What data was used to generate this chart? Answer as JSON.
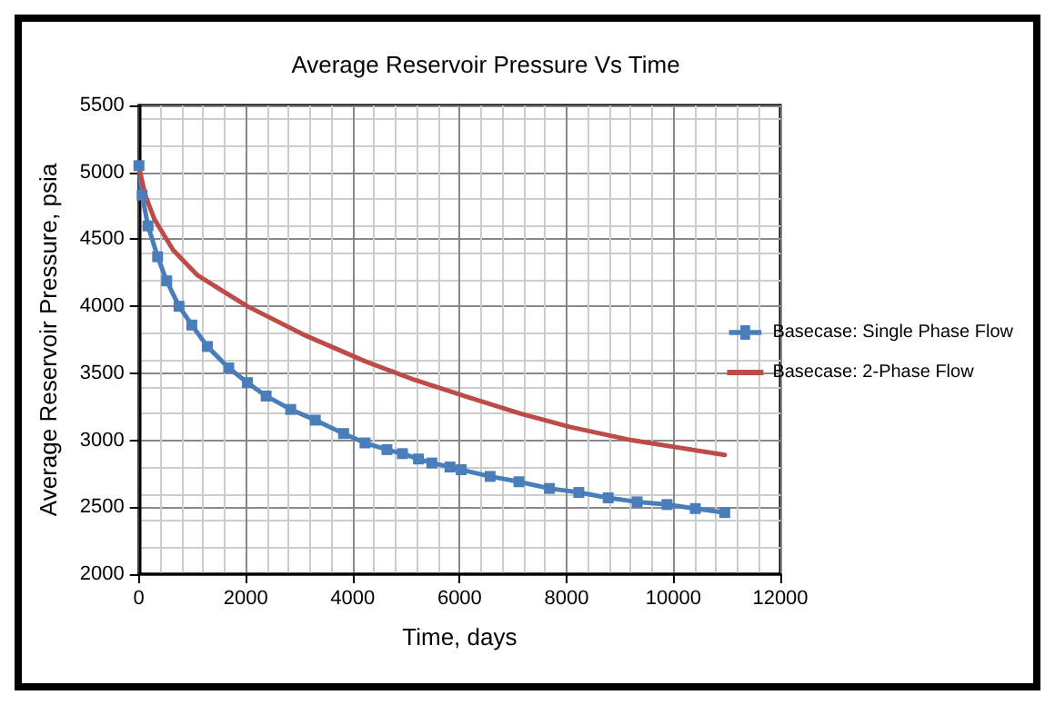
{
  "chart_data": {
    "type": "line",
    "title": "Average Reservoir Pressure Vs Time",
    "xlabel": "Time, days",
    "ylabel": "Average Reservoir Pressure, psia",
    "series": [
      {
        "name": "Basecase: Single Phase Flow",
        "color": "#4a7ebb",
        "marker": "square",
        "x": [
          0,
          60,
          170,
          350,
          520,
          750,
          990,
          1280,
          1680,
          2030,
          2380,
          2840,
          3300,
          3830,
          4230,
          4640,
          4930,
          5230,
          5480,
          5820,
          6030,
          6570,
          7110,
          7680,
          8230,
          8780,
          9320,
          9880,
          10410,
          10960
        ],
        "values": [
          5050,
          4830,
          4600,
          4370,
          4190,
          4000,
          3860,
          3700,
          3540,
          3430,
          3330,
          3230,
          3150,
          3050,
          2980,
          2930,
          2900,
          2860,
          2830,
          2800,
          2780,
          2730,
          2690,
          2640,
          2610,
          2570,
          2540,
          2520,
          2490,
          2460
        ]
      },
      {
        "name": "Basecase: 2-Phase Flow",
        "color": "#be4b48",
        "marker": "none",
        "x": [
          0,
          120,
          290,
          640,
          1100,
          2030,
          3070,
          4230,
          5160,
          6090,
          7130,
          8060,
          9220,
          10960
        ],
        "values": [
          5040,
          4830,
          4650,
          4420,
          4230,
          4000,
          3790,
          3590,
          3450,
          3330,
          3200,
          3100,
          3000,
          2890
        ]
      }
    ],
    "xlim": [
      0,
      12000
    ],
    "xticks": [
      0,
      2000,
      4000,
      6000,
      8000,
      10000,
      12000
    ],
    "ylim": [
      2000,
      5500
    ],
    "yticks": [
      2000,
      2500,
      3000,
      3500,
      4000,
      4500,
      5000,
      5500
    ],
    "grid": true,
    "legend": "right"
  }
}
